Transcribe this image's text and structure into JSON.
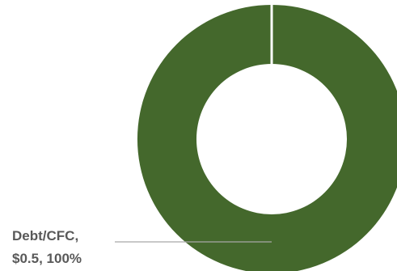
{
  "chart_data": {
    "type": "pie",
    "variant": "donut",
    "slices": [
      {
        "label": "Debt/CFC",
        "value": 0.5,
        "value_label": "$0.5",
        "percent": 100,
        "percent_label": "100%",
        "color": "#44682C"
      }
    ],
    "data_labels": {
      "line1": "Debt/CFC,",
      "line2": "$0.5, 100%"
    },
    "colors": {
      "slice": "#44682C",
      "separator": "#ffffff",
      "leader_line": "#A6A6A6",
      "label_text": "#595959"
    }
  }
}
